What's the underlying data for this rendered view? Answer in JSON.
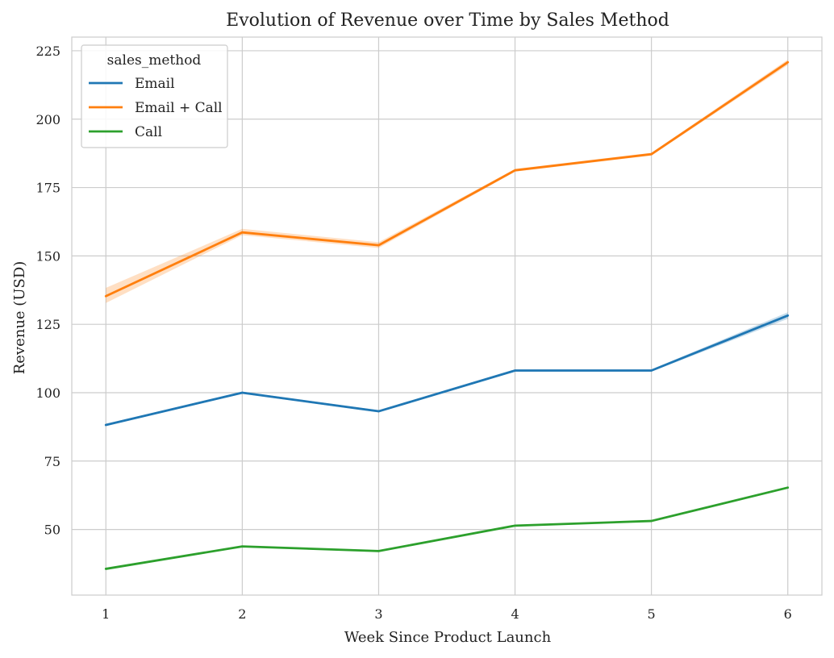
{
  "chart_data": {
    "type": "line",
    "title": "Evolution of Revenue over Time by Sales Method",
    "xlabel": "Week Since Product Launch",
    "ylabel": "Revenue (USD)",
    "x": [
      1,
      2,
      3,
      4,
      5,
      6
    ],
    "xticks": [
      "1",
      "2",
      "3",
      "4",
      "5",
      "6"
    ],
    "yticks": [
      50,
      75,
      100,
      125,
      150,
      175,
      200,
      225
    ],
    "xlim": [
      0.75,
      6.25
    ],
    "ylim": [
      26,
      230
    ],
    "grid": true,
    "legend": {
      "title": "sales_method",
      "placement": "top-left"
    },
    "series": [
      {
        "name": "Email",
        "color": "#1f77b4",
        "values": [
          88.2,
          100.0,
          93.2,
          108.1,
          108.1,
          128.2
        ],
        "ci_low": [
          87.8,
          99.6,
          92.8,
          107.7,
          107.7,
          127.0
        ],
        "ci_high": [
          88.6,
          100.4,
          93.6,
          108.5,
          108.5,
          129.4
        ]
      },
      {
        "name": "Email + Call",
        "color": "#ff7f0e",
        "values": [
          135.3,
          158.6,
          153.9,
          181.3,
          187.2,
          220.8
        ],
        "ci_low": [
          132.8,
          157.6,
          152.9,
          180.8,
          186.7,
          219.8
        ],
        "ci_high": [
          138.3,
          159.9,
          155.0,
          181.8,
          187.7,
          221.8
        ]
      },
      {
        "name": "Call",
        "color": "#2ca02c",
        "values": [
          35.6,
          43.8,
          42.1,
          51.4,
          53.1,
          65.3
        ],
        "ci_low": [
          35.4,
          43.6,
          41.9,
          51.2,
          52.9,
          65.0
        ],
        "ci_high": [
          35.8,
          44.0,
          42.3,
          51.6,
          53.3,
          65.6
        ]
      }
    ]
  }
}
